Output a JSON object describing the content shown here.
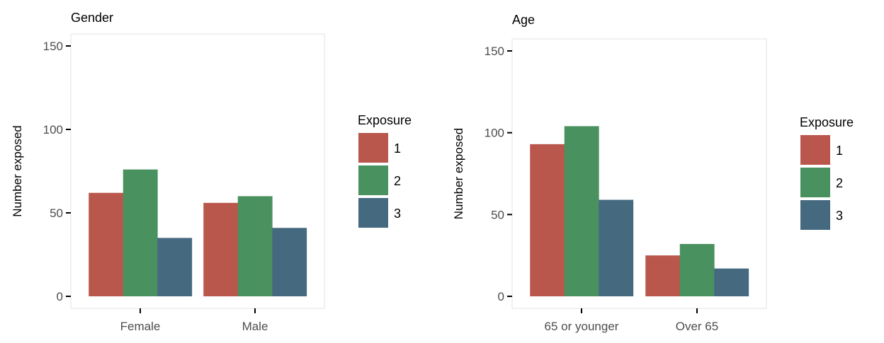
{
  "colors": {
    "1": "#b9574c",
    "2": "#4a9160",
    "3": "#456a80"
  },
  "chart_data": [
    {
      "type": "bar",
      "title": "Gender",
      "xlabel": "",
      "ylabel": "Number exposed",
      "ylim": [
        0,
        150
      ],
      "yticks": [
        0,
        50,
        100,
        150
      ],
      "categories": [
        "Female",
        "Male"
      ],
      "legend_title": "Exposure",
      "legend_position": "right",
      "grid": false,
      "series": [
        {
          "name": "1",
          "values": [
            62,
            56
          ]
        },
        {
          "name": "2",
          "values": [
            76,
            60
          ]
        },
        {
          "name": "3",
          "values": [
            35,
            41
          ]
        }
      ]
    },
    {
      "type": "bar",
      "title": "Age",
      "xlabel": "",
      "ylabel": "Number exposed",
      "ylim": [
        0,
        150
      ],
      "yticks": [
        0,
        50,
        100,
        150
      ],
      "categories": [
        "65 or younger",
        "Over 65"
      ],
      "legend_title": "Exposure",
      "legend_position": "right",
      "grid": false,
      "series": [
        {
          "name": "1",
          "values": [
            93,
            25
          ]
        },
        {
          "name": "2",
          "values": [
            104,
            32
          ]
        },
        {
          "name": "3",
          "values": [
            59,
            17
          ]
        }
      ]
    }
  ]
}
